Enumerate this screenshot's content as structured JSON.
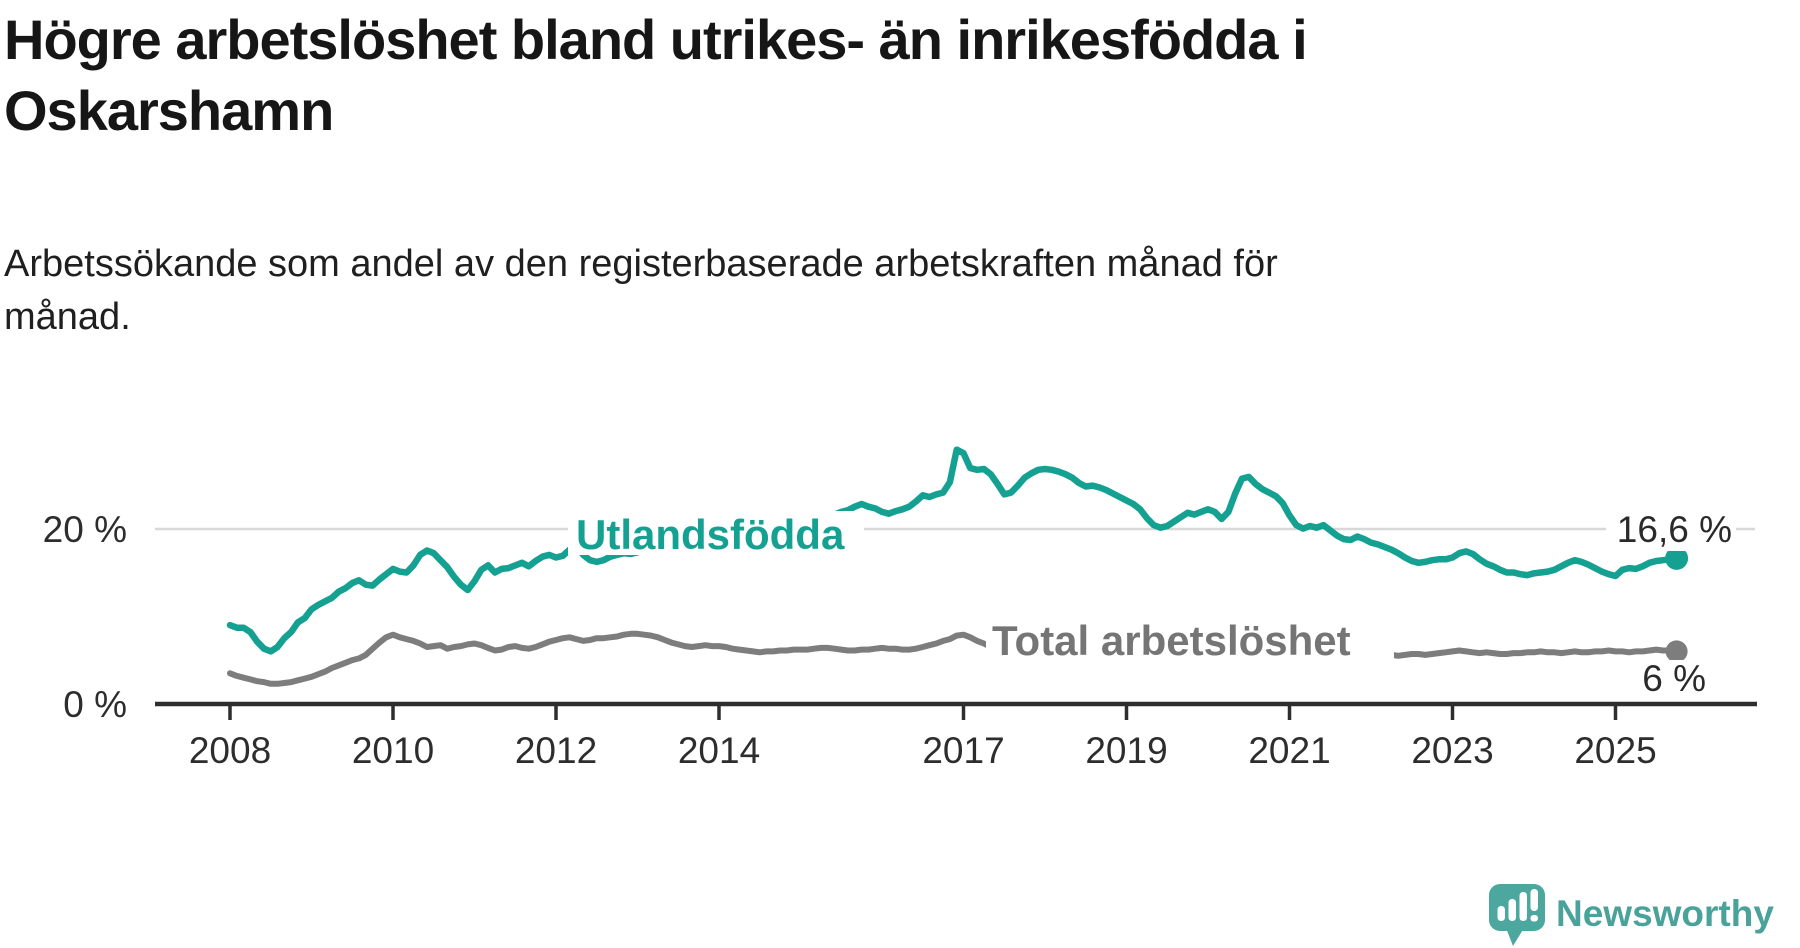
{
  "header": {
    "title_lines": [
      "Högre arbetslöshet bland utrikes- än inrikesfödda i",
      "Oskarshamn"
    ],
    "subtitle_lines": [
      "Arbetssökande som andel av den registerbaserade arbetskraften månad för",
      "månad."
    ]
  },
  "chart_data": {
    "type": "line",
    "title": "Högre arbetslöshet bland utrikes- än inrikesfödda i Oskarshamn",
    "subtitle": "Arbetssökande som andel av den registerbaserade arbetskraften månad för månad.",
    "unit": "percent",
    "grid": "single horizontal gridline at 20 %",
    "legend_position": "labels drawn on lines",
    "x_axis": {
      "start_year": 2008,
      "interval": "monthly",
      "end_month": "2025-10",
      "ticks": [
        2008,
        2010,
        2012,
        2014,
        2017,
        2019,
        2021,
        2023,
        2025
      ]
    },
    "y_axis": {
      "range": [
        0,
        30
      ],
      "ticks": [
        {
          "value": 20,
          "label": "20 %"
        },
        {
          "value": 0,
          "label": "0 %"
        }
      ]
    },
    "series": [
      {
        "name": "Utlandsfödda",
        "color": "#14A192",
        "end_label": "16,6 %",
        "end_value": 16.6,
        "values_by_year": [
          [
            9.0,
            8.7,
            8.7,
            8.2,
            7.1,
            6.3,
            6.0,
            6.5,
            7.5,
            8.2,
            9.3,
            9.8
          ],
          [
            10.8,
            11.3,
            11.7,
            12.1,
            12.8,
            13.2,
            13.8,
            14.1,
            13.6,
            13.5,
            14.2,
            14.8
          ],
          [
            15.4,
            15.1,
            15.0,
            15.8,
            17.0,
            17.5,
            17.2,
            16.4,
            15.6,
            14.5,
            13.6,
            13.0
          ],
          [
            14.0,
            15.3,
            15.8,
            15.0,
            15.4,
            15.5,
            15.8,
            16.1,
            15.7,
            16.3,
            16.8,
            17.0
          ],
          [
            16.7,
            16.9,
            17.6,
            18.1,
            17.0,
            16.4,
            16.2,
            16.4,
            16.8,
            17.0,
            17.2,
            17.1
          ],
          [
            17.3,
            17.6,
            17.9,
            18.2,
            18.0,
            17.8,
            17.6,
            17.7,
            17.9,
            18.0,
            18.1,
            18.0
          ],
          [
            18.2,
            18.4,
            18.3,
            18.1,
            17.9,
            17.8,
            18.0,
            18.3,
            18.6,
            18.9,
            19.2,
            19.4
          ],
          [
            19.5,
            19.8,
            20.2,
            20.7,
            21.2,
            21.6,
            21.9,
            22.1,
            22.5,
            22.8,
            22.5,
            22.3
          ],
          [
            21.9,
            21.7,
            22.0,
            22.2,
            22.5,
            23.1,
            23.8,
            23.6,
            23.9,
            24.1,
            25.3,
            29.0
          ],
          [
            28.6,
            26.9,
            26.7,
            26.8,
            26.2,
            25.1,
            23.9,
            24.1,
            24.9,
            25.8,
            26.3,
            26.7
          ],
          [
            26.8,
            26.7,
            26.5,
            26.2,
            25.8,
            25.2,
            24.8,
            24.9,
            24.7,
            24.4,
            24.0,
            23.6
          ],
          [
            23.2,
            22.8,
            22.2,
            21.2,
            20.4,
            20.1,
            20.3,
            20.8,
            21.3,
            21.8,
            21.6,
            21.9
          ],
          [
            22.2,
            21.9,
            21.1,
            21.9,
            24.0,
            25.7,
            25.9,
            25.1,
            24.5,
            24.1,
            23.7,
            22.9
          ],
          [
            21.5,
            20.4,
            20.0,
            20.3,
            20.1,
            20.4,
            19.8,
            19.2,
            18.8,
            18.7,
            19.1,
            18.8
          ],
          [
            18.4,
            18.2,
            17.9,
            17.6,
            17.2,
            16.7,
            16.3,
            16.1,
            16.2,
            16.4,
            16.5,
            16.5
          ],
          [
            16.7,
            17.2,
            17.4,
            17.1,
            16.5,
            16.0,
            15.7,
            15.3,
            15.0,
            15.0,
            14.8,
            14.7
          ],
          [
            14.9,
            15.0,
            15.1,
            15.3,
            15.7,
            16.1,
            16.4,
            16.2,
            15.9,
            15.5,
            15.1,
            14.8
          ],
          [
            14.6,
            15.3,
            15.5,
            15.4,
            15.7,
            16.1,
            16.3,
            16.4,
            16.5,
            16.6
          ]
        ]
      },
      {
        "name": "Total arbetslöshet",
        "color": "#7D7D7D",
        "end_label": "6 %",
        "end_value": 6.0,
        "values_by_year": [
          [
            3.5,
            3.2,
            3.0,
            2.8,
            2.6,
            2.5,
            2.3,
            2.3,
            2.4,
            2.5,
            2.7,
            2.9
          ],
          [
            3.1,
            3.4,
            3.7,
            4.1,
            4.4,
            4.7,
            5.0,
            5.2,
            5.6,
            6.3,
            7.0,
            7.6
          ],
          [
            7.9,
            7.6,
            7.4,
            7.2,
            6.9,
            6.5,
            6.6,
            6.7,
            6.3,
            6.5,
            6.6,
            6.8
          ],
          [
            6.9,
            6.7,
            6.4,
            6.1,
            6.2,
            6.5,
            6.6,
            6.4,
            6.3,
            6.5,
            6.8,
            7.1
          ],
          [
            7.3,
            7.5,
            7.6,
            7.4,
            7.2,
            7.3,
            7.5,
            7.5,
            7.6,
            7.7,
            7.9,
            8.0
          ],
          [
            8.0,
            7.9,
            7.8,
            7.6,
            7.3,
            7.0,
            6.8,
            6.6,
            6.5,
            6.6,
            6.7,
            6.6
          ],
          [
            6.6,
            6.5,
            6.3,
            6.2,
            6.1,
            6.0,
            5.9,
            6.0,
            6.0,
            6.1,
            6.1,
            6.2
          ],
          [
            6.2,
            6.2,
            6.3,
            6.4,
            6.4,
            6.3,
            6.2,
            6.1,
            6.1,
            6.2,
            6.2,
            6.3
          ],
          [
            6.4,
            6.3,
            6.3,
            6.2,
            6.2,
            6.3,
            6.5,
            6.7,
            6.9,
            7.2,
            7.4,
            7.8
          ],
          [
            7.9,
            7.6,
            7.2,
            6.9,
            6.5,
            6.2,
            6.2,
            6.3,
            6.3,
            6.4,
            6.4,
            6.5
          ],
          [
            6.4,
            6.3,
            6.2,
            6.1,
            6.0,
            5.9,
            5.9,
            6.0,
            6.0,
            6.1,
            6.1,
            6.2
          ],
          [
            6.2,
            6.1,
            6.1,
            6.0,
            6.0,
            6.1,
            6.1,
            6.2,
            6.2,
            6.3,
            6.4,
            6.5
          ],
          [
            6.6,
            6.6,
            6.8,
            7.1,
            7.3,
            7.5,
            7.5,
            7.4,
            7.3,
            7.2,
            7.1,
            7.0
          ],
          [
            7.0,
            6.9,
            6.8,
            6.6,
            6.4,
            6.2,
            6.0,
            5.9,
            5.8,
            5.7,
            5.7,
            5.8
          ],
          [
            5.8,
            5.7,
            5.6,
            5.6,
            5.5,
            5.6,
            5.7,
            5.7,
            5.6,
            5.7,
            5.8,
            5.9
          ],
          [
            6.0,
            6.1,
            6.0,
            5.9,
            5.8,
            5.9,
            5.8,
            5.7,
            5.7,
            5.8,
            5.8,
            5.9
          ],
          [
            5.9,
            6.0,
            5.9,
            5.9,
            5.8,
            5.9,
            6.0,
            5.9,
            5.9,
            6.0,
            6.0,
            6.1
          ],
          [
            6.0,
            6.0,
            5.9,
            6.0,
            6.0,
            6.1,
            6.2,
            6.1,
            6.1,
            6.0
          ]
        ]
      }
    ]
  },
  "footer": {
    "brand": "Newsworthy",
    "brand_color": "#4AA29B",
    "logo_icon": "bar-chart-speech-bubble"
  }
}
